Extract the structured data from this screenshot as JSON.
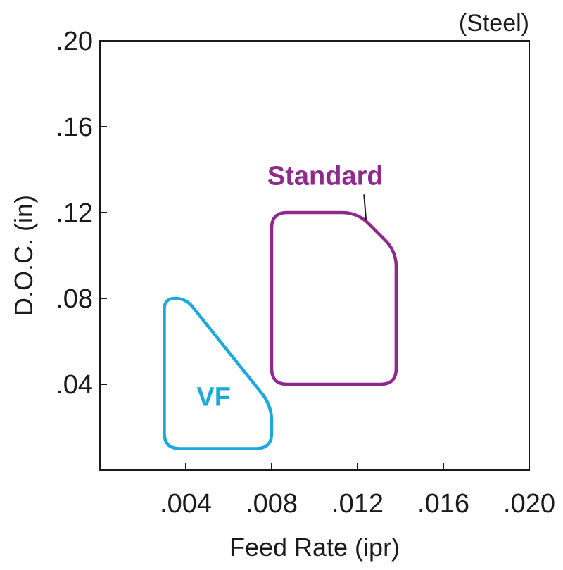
{
  "chart_data": {
    "type": "area",
    "annotation": "(Steel)",
    "xlabel": "Feed Rate (ipr)",
    "ylabel": "D.O.C. (in)",
    "xlim": [
      0,
      0.02
    ],
    "ylim": [
      0,
      0.2
    ],
    "x_ticks": [
      {
        "value": 0.004,
        "label": ".004"
      },
      {
        "value": 0.008,
        "label": ".008"
      },
      {
        "value": 0.012,
        "label": ".012"
      },
      {
        "value": 0.016,
        "label": ".016"
      },
      {
        "value": 0.02,
        "label": ".020"
      }
    ],
    "y_ticks": [
      {
        "value": 0.04,
        "label": ".04"
      },
      {
        "value": 0.08,
        "label": ".08"
      },
      {
        "value": 0.12,
        "label": ".12"
      },
      {
        "value": 0.16,
        "label": ".16"
      },
      {
        "value": 0.2,
        "label": ".20"
      }
    ],
    "grid": false,
    "series": [
      {
        "name": "Standard",
        "color": "#8e2a8c",
        "points": [
          [
            0.008,
            0.04
          ],
          [
            0.0138,
            0.04
          ],
          [
            0.0138,
            0.102
          ],
          [
            0.012,
            0.12
          ],
          [
            0.008,
            0.12
          ]
        ],
        "label_at": [
          0.0105,
          0.133
        ]
      },
      {
        "name": "VF",
        "color": "#1fa8dc",
        "points": [
          [
            0.003,
            0.01
          ],
          [
            0.008,
            0.01
          ],
          [
            0.008,
            0.03
          ],
          [
            0.004,
            0.08
          ],
          [
            0.003,
            0.08
          ]
        ],
        "label_at": [
          0.0053,
          0.03
        ]
      }
    ]
  }
}
